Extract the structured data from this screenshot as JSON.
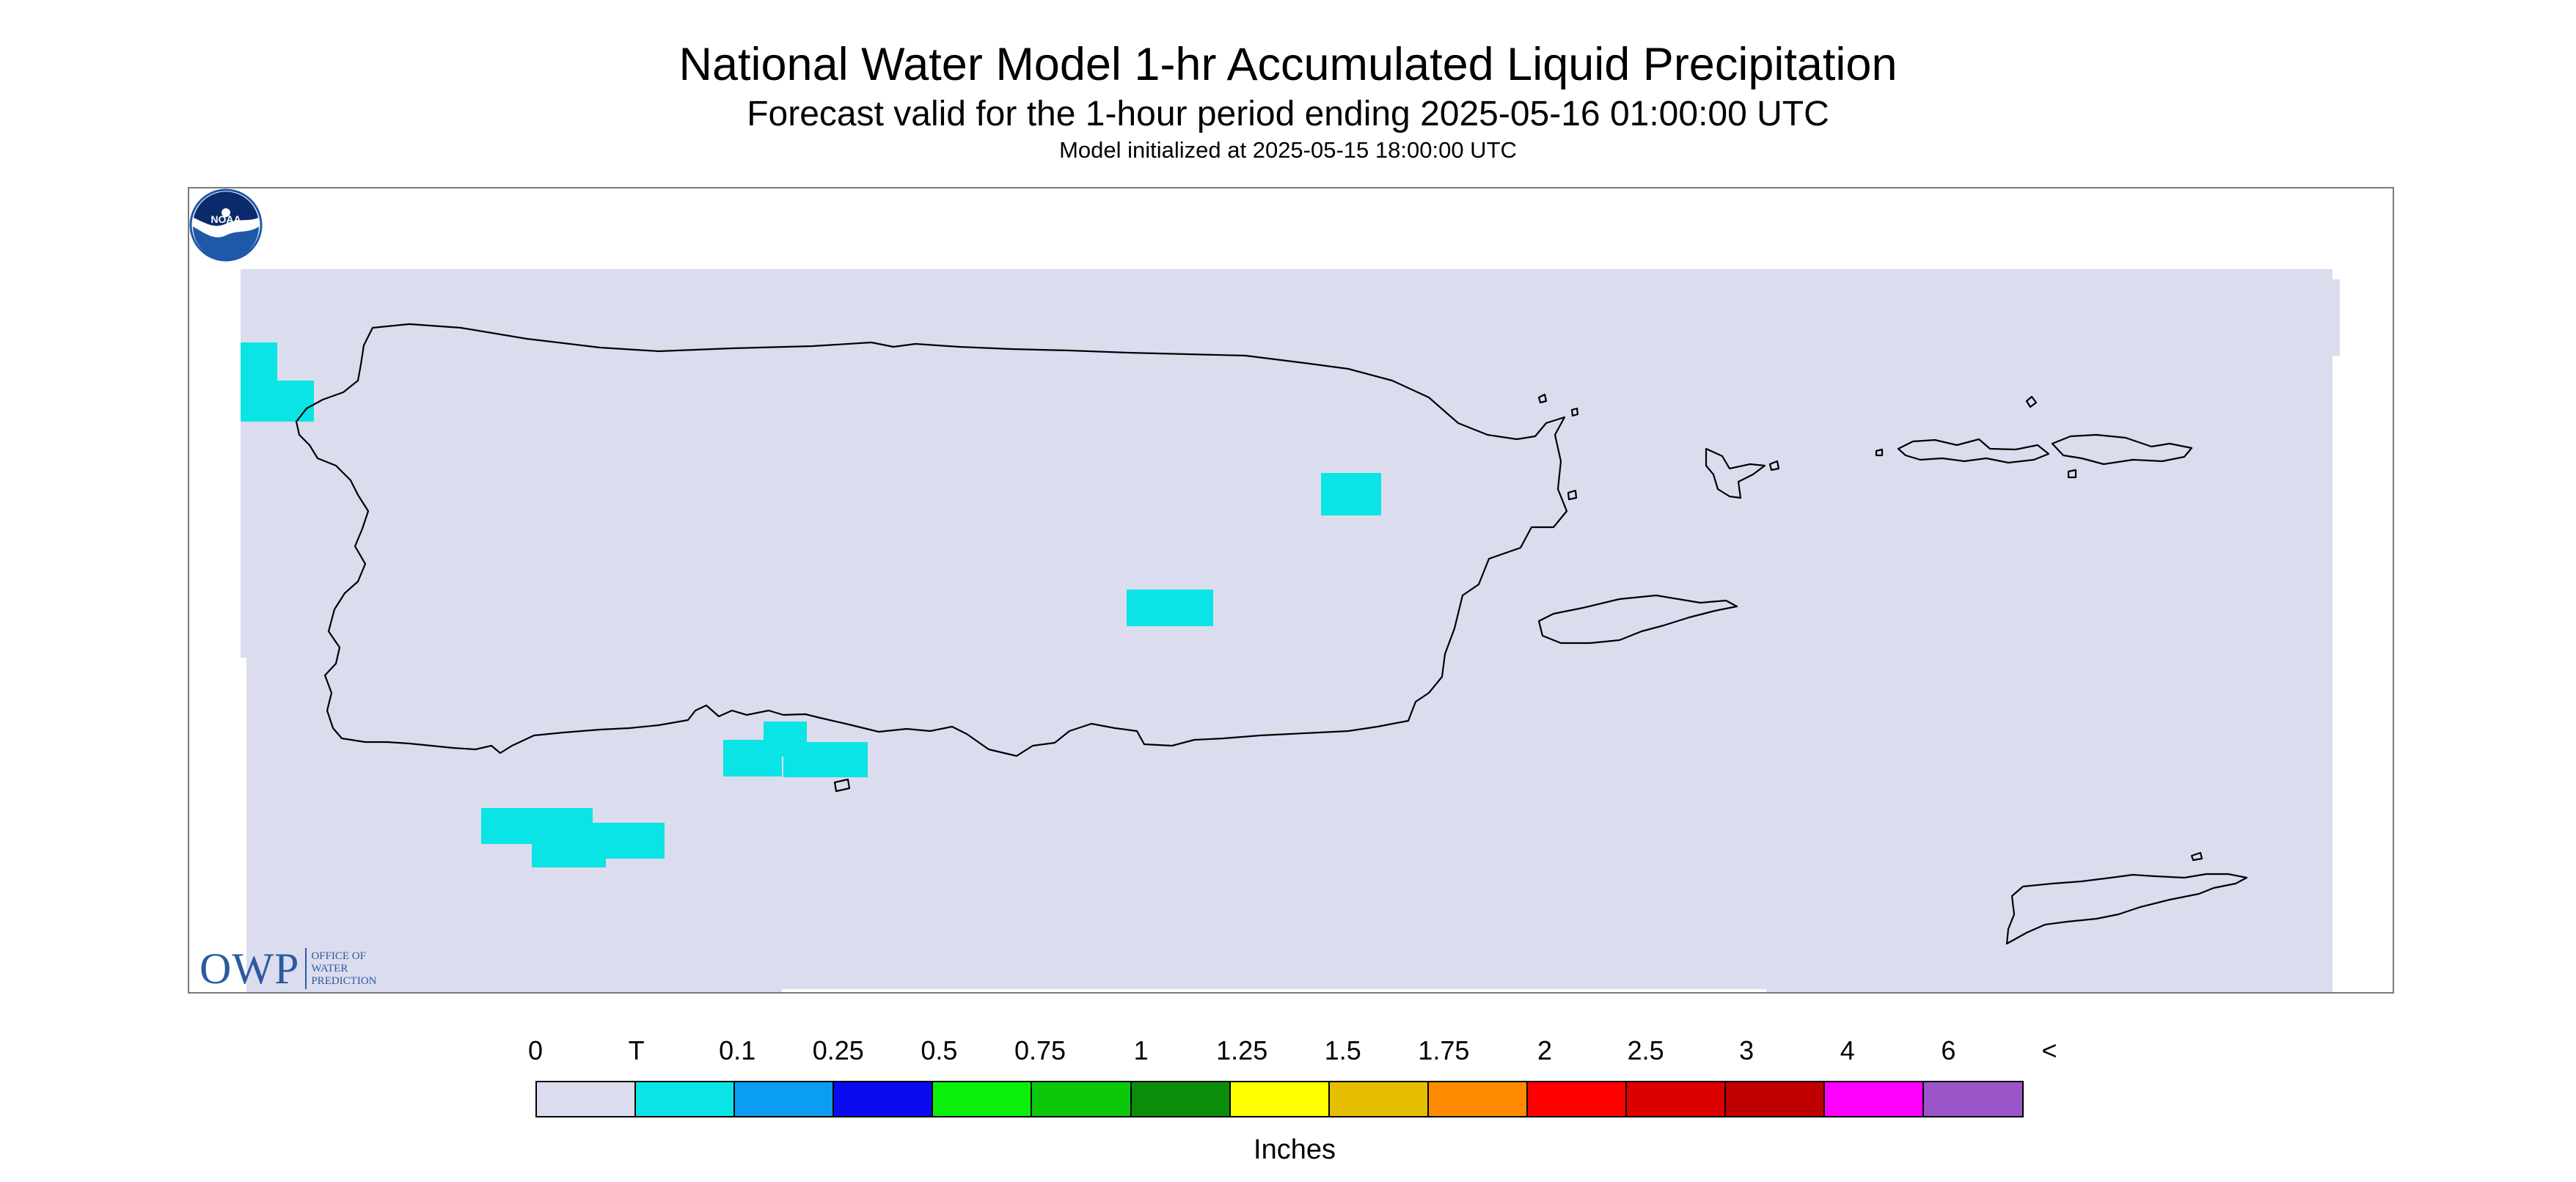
{
  "header": {
    "title": "National Water Model 1-hr Accumulated Liquid Precipitation",
    "subtitle": "Forecast valid for the 1-hour period ending 2025-05-16 01:00:00 UTC",
    "init_line": "Model initialized at 2025-05-15 18:00:00 UTC"
  },
  "map": {
    "region": "Puerto Rico and Virgin Islands",
    "background_color": "#dcdcef",
    "coastline_color": "#000000",
    "precip_cell_color": "#0be4e4",
    "precip_cell_category": "T"
  },
  "logos": {
    "owp_letters": "OWP",
    "owp_lines": [
      "OFFICE OF",
      "WATER",
      "PREDICTION"
    ],
    "noaa_text": "NOAA"
  },
  "legend": {
    "labels": [
      "0",
      "T",
      "0.1",
      "0.25",
      "0.5",
      "0.75",
      "1",
      "1.25",
      "1.5",
      "1.75",
      "2",
      "2.5",
      "3",
      "4",
      "6",
      "<"
    ],
    "colors": [
      "#dcdcef",
      "#0be4e4",
      "#0b9ef0",
      "#0b0bf0",
      "#0bf00b",
      "#0bc80b",
      "#0b8c0b",
      "#ffff00",
      "#e6be00",
      "#ff8c00",
      "#ff0000",
      "#dc0000",
      "#c00000",
      "#ff00ff",
      "#9b55c8"
    ],
    "unit": "Inches"
  }
}
